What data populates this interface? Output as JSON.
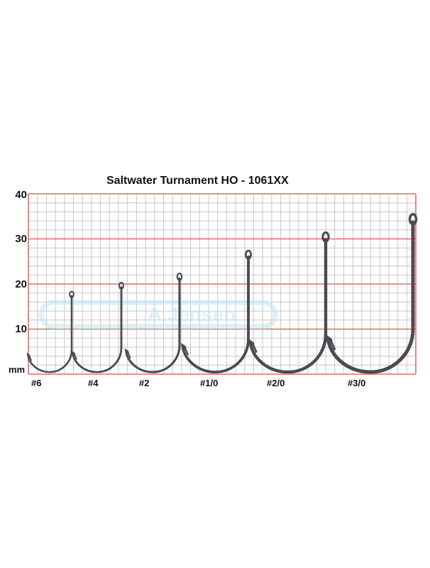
{
  "title": "Saltwater Turnament HO - 1061XX",
  "watermark": "A.Jensen",
  "unit": "mm",
  "y_ticks": [
    "40",
    "30",
    "20",
    "10"
  ],
  "sizes": [
    "#6",
    "#4",
    "#2",
    "#1/0",
    "#2/0",
    "#3/0"
  ],
  "hook_lengths_mm": [
    18,
    20,
    22,
    27,
    31,
    35
  ],
  "colors": {
    "grid_major": "#e36a6a",
    "grid_minor": "#c8c8c8",
    "hook": "#4a4a50",
    "watermark": "#bfe6f6"
  }
}
